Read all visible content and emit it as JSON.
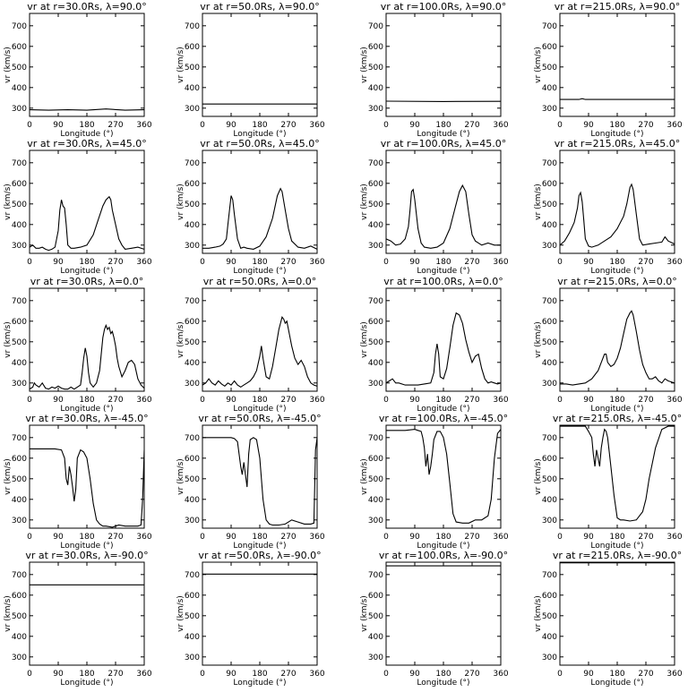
{
  "figure": {
    "xlabel": "Longitude (°)",
    "ylabel": "vr (km/s)",
    "xticks": [
      0,
      90,
      180,
      270,
      360
    ],
    "yticks": [
      300,
      400,
      500,
      600,
      700
    ],
    "xlim": [
      0,
      360
    ],
    "ylim": [
      260,
      760
    ],
    "line_color": "#000000"
  },
  "chart_data": [
    {
      "type": "line",
      "title": "vr at r=30.0Rs, λ=90.0°",
      "xlabel": "Longitude (°)",
      "ylabel": "vr (km/s)",
      "xlim": [
        0,
        360
      ],
      "ylim": [
        260,
        760
      ],
      "x": [
        0,
        60,
        120,
        180,
        240,
        300,
        360
      ],
      "y": [
        292,
        290,
        292,
        290,
        296,
        290,
        292
      ]
    },
    {
      "type": "line",
      "title": "vr at r=50.0Rs, λ=90.0°",
      "xlabel": "Longitude (°)",
      "ylabel": "vr (km/s)",
      "xlim": [
        0,
        360
      ],
      "ylim": [
        260,
        760
      ],
      "x": [
        0,
        360
      ],
      "y": [
        320,
        320
      ]
    },
    {
      "type": "line",
      "title": "vr at r=100.0Rs, λ=90.0°",
      "xlabel": "Longitude (°)",
      "ylabel": "vr (km/s)",
      "xlim": [
        0,
        360
      ],
      "ylim": [
        260,
        760
      ],
      "x": [
        0,
        180,
        360
      ],
      "y": [
        334,
        332,
        333
      ]
    },
    {
      "type": "line",
      "title": "vr at r=215.0Rs, λ=90.0°",
      "xlabel": "Longitude (°)",
      "ylabel": "vr (km/s)",
      "xlim": [
        0,
        360
      ],
      "ylim": [
        260,
        760
      ],
      "x": [
        0,
        60,
        70,
        80,
        360
      ],
      "y": [
        342,
        342,
        346,
        342,
        342
      ]
    },
    {
      "type": "line",
      "title": "vr at r=30.0Rs, λ=45.0°",
      "xlabel": "Longitude (°)",
      "ylabel": "vr (km/s)",
      "xlim": [
        0,
        360
      ],
      "ylim": [
        260,
        760
      ],
      "x": [
        0,
        10,
        20,
        30,
        40,
        50,
        60,
        70,
        80,
        90,
        95,
        100,
        105,
        110,
        115,
        120,
        130,
        140,
        160,
        180,
        200,
        215,
        230,
        240,
        250,
        255,
        260,
        270,
        280,
        290,
        300,
        320,
        340,
        360
      ],
      "y": [
        290,
        300,
        285,
        285,
        290,
        280,
        275,
        280,
        290,
        370,
        470,
        520,
        490,
        480,
        400,
        300,
        285,
        285,
        290,
        300,
        350,
        420,
        490,
        520,
        535,
        520,
        470,
        400,
        330,
        300,
        280,
        285,
        290,
        280
      ]
    },
    {
      "type": "line",
      "title": "vr at r=50.0Rs, λ=45.0°",
      "xlabel": "Longitude (°)",
      "ylabel": "vr (km/s)",
      "xlim": [
        0,
        360
      ],
      "ylim": [
        260,
        760
      ],
      "x": [
        0,
        20,
        40,
        55,
        65,
        75,
        80,
        85,
        90,
        95,
        100,
        110,
        120,
        130,
        140,
        160,
        180,
        200,
        220,
        235,
        245,
        250,
        260,
        270,
        280,
        300,
        320,
        340,
        360
      ],
      "y": [
        285,
        285,
        290,
        295,
        305,
        330,
        400,
        470,
        540,
        520,
        450,
        330,
        285,
        290,
        285,
        280,
        295,
        340,
        430,
        540,
        575,
        560,
        470,
        380,
        320,
        290,
        285,
        295,
        280
      ]
    },
    {
      "type": "line",
      "title": "vr at r=100.0Rs, λ=45.0°",
      "xlabel": "Longitude (°)",
      "ylabel": "vr (km/s)",
      "xlim": [
        0,
        360
      ],
      "ylim": [
        260,
        760
      ],
      "x": [
        0,
        15,
        30,
        45,
        60,
        70,
        75,
        80,
        85,
        90,
        100,
        110,
        120,
        140,
        160,
        180,
        200,
        215,
        230,
        240,
        250,
        260,
        270,
        280,
        300,
        320,
        340,
        360
      ],
      "y": [
        330,
        320,
        300,
        305,
        330,
        390,
        470,
        560,
        570,
        520,
        380,
        310,
        290,
        285,
        290,
        310,
        380,
        470,
        560,
        590,
        560,
        450,
        350,
        320,
        300,
        310,
        300,
        300
      ]
    },
    {
      "type": "line",
      "title": "vr at r=215.0Rs, λ=45.0°",
      "xlabel": "Longitude (°)",
      "ylabel": "vr (km/s)",
      "xlim": [
        0,
        360
      ],
      "ylim": [
        260,
        760
      ],
      "x": [
        0,
        15,
        30,
        45,
        55,
        60,
        65,
        70,
        75,
        80,
        90,
        100,
        120,
        140,
        160,
        180,
        200,
        210,
        220,
        225,
        230,
        240,
        250,
        260,
        280,
        300,
        320,
        330,
        340,
        360
      ],
      "y": [
        300,
        320,
        360,
        410,
        480,
        540,
        555,
        510,
        420,
        330,
        295,
        290,
        300,
        320,
        340,
        380,
        440,
        500,
        580,
        595,
        570,
        450,
        330,
        300,
        305,
        310,
        315,
        340,
        320,
        305
      ]
    },
    {
      "type": "line",
      "title": "vr at r=30.0Rs, λ=0.0°",
      "xlabel": "Longitude (°)",
      "ylabel": "vr (km/s)",
      "xlim": [
        0,
        360
      ],
      "ylim": [
        260,
        760
      ],
      "x": [
        0,
        10,
        15,
        20,
        30,
        40,
        50,
        60,
        70,
        80,
        90,
        100,
        110,
        120,
        130,
        140,
        150,
        160,
        165,
        170,
        175,
        180,
        185,
        190,
        200,
        210,
        220,
        225,
        230,
        235,
        240,
        245,
        250,
        255,
        260,
        265,
        270,
        275,
        280,
        290,
        300,
        310,
        320,
        330,
        340,
        350,
        360
      ],
      "y": [
        270,
        280,
        300,
        290,
        280,
        300,
        275,
        270,
        280,
        275,
        285,
        275,
        270,
        270,
        280,
        270,
        280,
        290,
        350,
        420,
        470,
        430,
        350,
        300,
        280,
        300,
        360,
        440,
        520,
        560,
        580,
        560,
        570,
        540,
        550,
        520,
        480,
        420,
        380,
        330,
        360,
        400,
        410,
        390,
        320,
        290,
        275
      ]
    },
    {
      "type": "line",
      "title": "vr at r=50.0Rs, λ=0.0°",
      "xlabel": "Longitude (°)",
      "ylabel": "vr (km/s)",
      "xlim": [
        0,
        360
      ],
      "ylim": [
        260,
        760
      ],
      "x": [
        0,
        10,
        20,
        30,
        40,
        50,
        60,
        70,
        80,
        90,
        100,
        110,
        120,
        130,
        140,
        150,
        160,
        170,
        180,
        185,
        190,
        200,
        210,
        220,
        230,
        240,
        250,
        255,
        260,
        265,
        270,
        275,
        280,
        290,
        300,
        310,
        320,
        330,
        340,
        350,
        360
      ],
      "y": [
        290,
        300,
        320,
        300,
        290,
        310,
        295,
        285,
        300,
        290,
        310,
        290,
        280,
        290,
        300,
        310,
        330,
        360,
        430,
        480,
        420,
        330,
        320,
        380,
        470,
        560,
        620,
        610,
        590,
        600,
        560,
        520,
        480,
        420,
        390,
        410,
        380,
        330,
        300,
        290,
        285
      ]
    },
    {
      "type": "line",
      "title": "vr at r=100.0Rs, λ=0.0°",
      "xlabel": "Longitude (°)",
      "ylabel": "vr (km/s)",
      "xlim": [
        0,
        360
      ],
      "ylim": [
        260,
        760
      ],
      "x": [
        0,
        10,
        20,
        30,
        40,
        60,
        80,
        100,
        120,
        140,
        150,
        155,
        160,
        165,
        170,
        180,
        190,
        200,
        210,
        220,
        230,
        240,
        250,
        260,
        270,
        280,
        290,
        300,
        310,
        320,
        330,
        340,
        350,
        360
      ],
      "y": [
        300,
        310,
        320,
        300,
        300,
        290,
        290,
        290,
        295,
        300,
        350,
        440,
        490,
        440,
        330,
        320,
        370,
        470,
        580,
        640,
        630,
        590,
        510,
        450,
        400,
        430,
        440,
        370,
        320,
        300,
        305,
        300,
        295,
        300
      ]
    },
    {
      "type": "line",
      "title": "vr at r=215.0Rs, λ=0.0°",
      "xlabel": "Longitude (°)",
      "ylabel": "vr (km/s)",
      "xlim": [
        0,
        360
      ],
      "ylim": [
        260,
        760
      ],
      "x": [
        0,
        20,
        40,
        60,
        80,
        100,
        120,
        130,
        140,
        145,
        150,
        160,
        170,
        180,
        190,
        200,
        210,
        220,
        225,
        230,
        240,
        250,
        260,
        270,
        280,
        290,
        300,
        310,
        320,
        330,
        340,
        350,
        360
      ],
      "y": [
        295,
        295,
        290,
        295,
        300,
        320,
        360,
        400,
        440,
        440,
        400,
        380,
        390,
        420,
        470,
        540,
        610,
        640,
        650,
        630,
        550,
        460,
        390,
        350,
        320,
        320,
        330,
        310,
        300,
        320,
        310,
        305,
        300
      ]
    },
    {
      "type": "line",
      "title": "vr at r=30.0Rs, λ=-45.0°",
      "xlabel": "Longitude (°)",
      "ylabel": "vr (km/s)",
      "xlim": [
        0,
        360
      ],
      "ylim": [
        260,
        760
      ],
      "x": [
        0,
        30,
        60,
        80,
        100,
        110,
        115,
        120,
        125,
        130,
        135,
        140,
        145,
        150,
        160,
        170,
        180,
        190,
        200,
        210,
        220,
        230,
        240,
        260,
        280,
        300,
        320,
        340,
        350,
        355,
        360
      ],
      "y": [
        645,
        645,
        645,
        645,
        640,
        600,
        500,
        470,
        560,
        520,
        460,
        390,
        450,
        600,
        640,
        630,
        600,
        500,
        380,
        300,
        280,
        270,
        270,
        265,
        275,
        270,
        270,
        270,
        275,
        400,
        640
      ]
    },
    {
      "type": "line",
      "title": "vr at r=50.0Rs, λ=-45.0°",
      "xlabel": "Longitude (°)",
      "ylabel": "vr (km/s)",
      "xlim": [
        0,
        360
      ],
      "ylim": [
        260,
        760
      ],
      "x": [
        0,
        30,
        60,
        90,
        100,
        110,
        115,
        120,
        125,
        130,
        135,
        140,
        145,
        150,
        160,
        170,
        180,
        190,
        200,
        210,
        220,
        240,
        260,
        280,
        300,
        320,
        340,
        350,
        355,
        360
      ],
      "y": [
        700,
        700,
        700,
        700,
        695,
        680,
        620,
        560,
        520,
        580,
        520,
        460,
        620,
        690,
        700,
        690,
        600,
        400,
        300,
        280,
        275,
        275,
        280,
        300,
        290,
        280,
        280,
        285,
        640,
        700
      ]
    },
    {
      "type": "line",
      "title": "vr at r=100.0Rs, λ=-45.0°",
      "xlabel": "Longitude (°)",
      "ylabel": "vr (km/s)",
      "xlim": [
        0,
        360
      ],
      "ylim": [
        260,
        760
      ],
      "x": [
        0,
        30,
        60,
        90,
        100,
        110,
        115,
        120,
        125,
        130,
        135,
        140,
        145,
        150,
        155,
        160,
        170,
        180,
        190,
        200,
        210,
        220,
        240,
        260,
        280,
        300,
        310,
        320,
        330,
        340,
        350,
        360
      ],
      "y": [
        735,
        735,
        735,
        740,
        735,
        730,
        700,
        650,
        560,
        620,
        520,
        560,
        620,
        690,
        710,
        730,
        730,
        700,
        620,
        480,
        330,
        290,
        285,
        285,
        300,
        300,
        310,
        320,
        400,
        600,
        720,
        740
      ]
    },
    {
      "type": "line",
      "title": "vr at r=215.0Rs, λ=-45.0°",
      "xlabel": "Longitude (°)",
      "ylabel": "vr (km/s)",
      "xlim": [
        0,
        360
      ],
      "ylim": [
        260,
        760
      ],
      "x": [
        0,
        30,
        60,
        80,
        90,
        100,
        105,
        110,
        115,
        120,
        125,
        130,
        135,
        140,
        145,
        150,
        160,
        170,
        180,
        190,
        200,
        220,
        240,
        260,
        270,
        280,
        300,
        320,
        340,
        360
      ],
      "y": [
        755,
        755,
        755,
        755,
        730,
        700,
        620,
        560,
        640,
        600,
        560,
        650,
        700,
        740,
        730,
        700,
        560,
        420,
        310,
        300,
        300,
        295,
        300,
        340,
        400,
        500,
        650,
        740,
        755,
        755
      ]
    },
    {
      "type": "line",
      "title": "vr at r=30.0Rs, λ=-90.0°",
      "xlabel": "Longitude (°)",
      "ylabel": "vr (km/s)",
      "xlim": [
        0,
        360
      ],
      "ylim": [
        260,
        760
      ],
      "x": [
        0,
        360
      ],
      "y": [
        650,
        650
      ]
    },
    {
      "type": "line",
      "title": "vr at r=50.0Rs, λ=-90.0°",
      "xlabel": "Longitude (°)",
      "ylabel": "vr (km/s)",
      "xlim": [
        0,
        360
      ],
      "ylim": [
        260,
        760
      ],
      "x": [
        0,
        360
      ],
      "y": [
        702,
        702
      ]
    },
    {
      "type": "line",
      "title": "vr at r=100.0Rs, λ=-90.0°",
      "xlabel": "Longitude (°)",
      "ylabel": "vr (km/s)",
      "xlim": [
        0,
        360
      ],
      "ylim": [
        260,
        760
      ],
      "x": [
        0,
        360
      ],
      "y": [
        742,
        742
      ]
    },
    {
      "type": "line",
      "title": "vr at r=215.0Rs, λ=-90.0°",
      "xlabel": "Longitude (°)",
      "ylabel": "vr (km/s)",
      "xlim": [
        0,
        360
      ],
      "ylim": [
        260,
        760
      ],
      "x": [
        0,
        360
      ],
      "y": [
        757,
        757
      ]
    }
  ]
}
